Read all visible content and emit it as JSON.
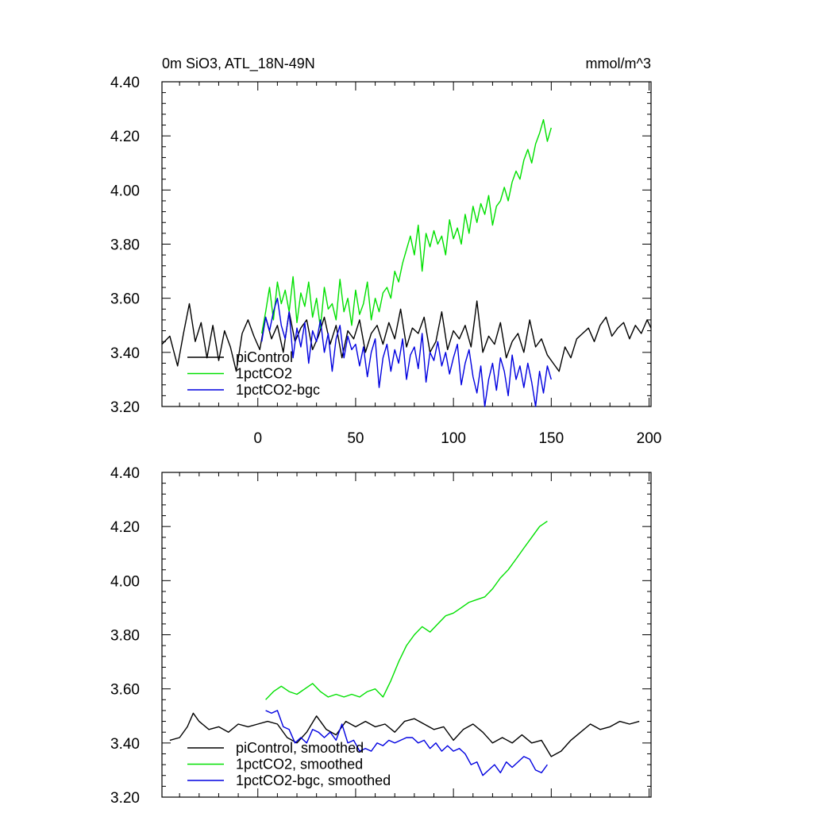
{
  "title_left": "0m SiO3, ATL_18N-49N",
  "title_right": "mmol/m^3",
  "colors": {
    "piControl": "#000000",
    "1pctCO2": "#00e000",
    "1pctCO2-bgc": "#0000e0"
  },
  "chart_data": [
    {
      "type": "line",
      "title": "0m SiO3, ATL_18N-49N",
      "units": "mmol/m^3",
      "xlim": [
        -49,
        201
      ],
      "ylim": [
        3.2,
        4.4
      ],
      "xticks": [
        0,
        50,
        100,
        150,
        200
      ],
      "xtick_labels": [
        "0",
        "50",
        "100",
        "150",
        "200"
      ],
      "yticks": [
        3.2,
        3.4,
        3.6,
        3.8,
        4.0,
        4.2,
        4.4
      ],
      "ytick_labels": [
        "3.20",
        "3.40",
        "3.60",
        "3.80",
        "4.00",
        "4.20",
        "4.40"
      ],
      "legend_position": "bottom-left",
      "series": [
        {
          "name": "piControl",
          "color": "#000000",
          "x": [
            -49,
            -45,
            -41,
            -38,
            -35,
            -32,
            -29,
            -26,
            -23,
            -20,
            -17,
            -14,
            -11,
            -8,
            -5,
            -2,
            1,
            4,
            7,
            10,
            13,
            16,
            19,
            22,
            25,
            28,
            31,
            34,
            37,
            40,
            43,
            46,
            49,
            52,
            55,
            58,
            61,
            64,
            67,
            70,
            73,
            76,
            79,
            82,
            85,
            88,
            91,
            94,
            97,
            100,
            103,
            106,
            109,
            112,
            115,
            118,
            121,
            124,
            127,
            130,
            133,
            136,
            139,
            142,
            145,
            148,
            151,
            154,
            157,
            160,
            163,
            166,
            169,
            172,
            175,
            178,
            181,
            184,
            187,
            190,
            193,
            196,
            199,
            201
          ],
          "values": [
            3.43,
            3.46,
            3.35,
            3.47,
            3.58,
            3.44,
            3.51,
            3.38,
            3.5,
            3.37,
            3.48,
            3.42,
            3.33,
            3.47,
            3.52,
            3.46,
            3.41,
            3.53,
            3.45,
            3.5,
            3.4,
            3.55,
            3.44,
            3.49,
            3.52,
            3.41,
            3.46,
            3.53,
            3.43,
            3.5,
            3.38,
            3.48,
            3.45,
            3.52,
            3.4,
            3.47,
            3.5,
            3.43,
            3.51,
            3.45,
            3.56,
            3.42,
            3.49,
            3.47,
            3.53,
            3.4,
            3.44,
            3.55,
            3.41,
            3.48,
            3.45,
            3.5,
            3.42,
            3.59,
            3.4,
            3.46,
            3.43,
            3.51,
            3.38,
            3.44,
            3.47,
            3.4,
            3.52,
            3.42,
            3.45,
            3.39,
            3.36,
            3.33,
            3.42,
            3.38,
            3.45,
            3.47,
            3.49,
            3.44,
            3.5,
            3.53,
            3.46,
            3.49,
            3.51,
            3.45,
            3.5,
            3.47,
            3.52,
            3.49
          ]
        },
        {
          "name": "1pctCO2",
          "color": "#00e000",
          "x": [
            2,
            4,
            6,
            8,
            10,
            12,
            14,
            16,
            18,
            20,
            22,
            24,
            26,
            28,
            30,
            32,
            34,
            36,
            38,
            40,
            42,
            44,
            46,
            48,
            50,
            52,
            54,
            56,
            58,
            60,
            62,
            64,
            66,
            68,
            70,
            72,
            74,
            76,
            78,
            80,
            82,
            84,
            86,
            88,
            90,
            92,
            94,
            96,
            98,
            100,
            102,
            104,
            106,
            108,
            110,
            112,
            114,
            116,
            118,
            120,
            122,
            124,
            126,
            128,
            130,
            132,
            134,
            136,
            138,
            140,
            142,
            144,
            146,
            148,
            150
          ],
          "values": [
            3.47,
            3.55,
            3.64,
            3.52,
            3.66,
            3.58,
            3.63,
            3.55,
            3.68,
            3.51,
            3.62,
            3.57,
            3.66,
            3.53,
            3.6,
            3.49,
            3.64,
            3.56,
            3.58,
            3.52,
            3.67,
            3.55,
            3.6,
            3.5,
            3.63,
            3.54,
            3.58,
            3.66,
            3.52,
            3.6,
            3.55,
            3.62,
            3.64,
            3.6,
            3.7,
            3.66,
            3.73,
            3.78,
            3.83,
            3.76,
            3.87,
            3.7,
            3.84,
            3.79,
            3.85,
            3.8,
            3.83,
            3.76,
            3.89,
            3.82,
            3.86,
            3.8,
            3.91,
            3.84,
            3.94,
            3.88,
            3.95,
            3.91,
            3.98,
            3.87,
            3.94,
            3.96,
            4.01,
            3.96,
            4.03,
            4.07,
            4.04,
            4.11,
            4.15,
            4.1,
            4.17,
            4.21,
            4.26,
            4.18,
            4.23
          ]
        },
        {
          "name": "1pctCO2-bgc",
          "color": "#0000e0",
          "x": [
            2,
            4,
            6,
            8,
            10,
            12,
            14,
            16,
            18,
            20,
            22,
            24,
            26,
            28,
            30,
            32,
            34,
            36,
            38,
            40,
            42,
            44,
            46,
            48,
            50,
            52,
            54,
            56,
            58,
            60,
            62,
            64,
            66,
            68,
            70,
            72,
            74,
            76,
            78,
            80,
            82,
            84,
            86,
            88,
            90,
            92,
            94,
            96,
            98,
            100,
            102,
            104,
            106,
            108,
            110,
            112,
            114,
            116,
            118,
            120,
            122,
            124,
            126,
            128,
            130,
            132,
            134,
            136,
            138,
            140,
            142,
            144,
            146,
            148,
            150
          ],
          "values": [
            3.44,
            3.53,
            3.48,
            3.55,
            3.6,
            3.5,
            3.45,
            3.55,
            3.38,
            3.49,
            3.42,
            3.51,
            3.36,
            3.48,
            3.44,
            3.52,
            3.4,
            3.47,
            3.33,
            3.45,
            3.5,
            3.38,
            3.46,
            3.41,
            3.43,
            3.35,
            3.42,
            3.31,
            3.4,
            3.45,
            3.27,
            3.38,
            3.43,
            3.33,
            3.41,
            3.36,
            3.45,
            3.3,
            3.39,
            3.42,
            3.34,
            3.47,
            3.29,
            3.4,
            3.37,
            3.44,
            3.35,
            3.4,
            3.32,
            3.38,
            3.43,
            3.28,
            3.36,
            3.41,
            3.31,
            3.25,
            3.35,
            3.2,
            3.3,
            3.36,
            3.26,
            3.38,
            3.33,
            3.24,
            3.39,
            3.3,
            3.35,
            3.27,
            3.36,
            3.29,
            3.2,
            3.33,
            3.25,
            3.35,
            3.3
          ]
        }
      ]
    },
    {
      "type": "line",
      "xlim": [
        -49,
        201
      ],
      "ylim": [
        3.2,
        4.4
      ],
      "xticks": [
        0,
        50,
        100,
        150,
        200
      ],
      "yticks": [
        3.2,
        3.4,
        3.6,
        3.8,
        4.0,
        4.2,
        4.4
      ],
      "ytick_labels": [
        "3.20",
        "3.40",
        "3.60",
        "3.80",
        "4.00",
        "4.20",
        "4.40"
      ],
      "legend_position": "bottom-left",
      "series": [
        {
          "name": "piControl, smoothed",
          "color": "#000000",
          "x": [
            -45,
            -40,
            -36,
            -33,
            -30,
            -25,
            -20,
            -15,
            -10,
            -5,
            0,
            5,
            10,
            15,
            20,
            25,
            30,
            35,
            40,
            45,
            50,
            55,
            60,
            65,
            70,
            75,
            80,
            85,
            90,
            95,
            100,
            105,
            110,
            115,
            120,
            125,
            130,
            135,
            140,
            145,
            150,
            155,
            160,
            165,
            170,
            175,
            180,
            185,
            190,
            195
          ],
          "values": [
            3.41,
            3.42,
            3.46,
            3.51,
            3.48,
            3.45,
            3.46,
            3.44,
            3.47,
            3.46,
            3.47,
            3.48,
            3.47,
            3.42,
            3.4,
            3.44,
            3.5,
            3.45,
            3.43,
            3.48,
            3.46,
            3.48,
            3.46,
            3.47,
            3.44,
            3.48,
            3.49,
            3.47,
            3.45,
            3.46,
            3.41,
            3.45,
            3.47,
            3.44,
            3.4,
            3.42,
            3.4,
            3.43,
            3.4,
            3.41,
            3.35,
            3.37,
            3.41,
            3.44,
            3.47,
            3.45,
            3.46,
            3.48,
            3.47,
            3.48
          ]
        },
        {
          "name": "1pctCO2, smoothed",
          "color": "#00e000",
          "x": [
            4,
            8,
            12,
            16,
            20,
            24,
            28,
            32,
            36,
            40,
            44,
            48,
            52,
            56,
            60,
            64,
            68,
            72,
            76,
            80,
            84,
            88,
            92,
            96,
            100,
            104,
            108,
            112,
            116,
            120,
            124,
            128,
            132,
            136,
            140,
            144,
            148
          ],
          "values": [
            3.56,
            3.59,
            3.61,
            3.59,
            3.58,
            3.6,
            3.62,
            3.59,
            3.57,
            3.58,
            3.57,
            3.58,
            3.57,
            3.59,
            3.6,
            3.57,
            3.63,
            3.7,
            3.76,
            3.8,
            3.83,
            3.81,
            3.84,
            3.87,
            3.88,
            3.9,
            3.92,
            3.93,
            3.94,
            3.97,
            4.01,
            4.04,
            4.08,
            4.12,
            4.16,
            4.2,
            4.22
          ]
        },
        {
          "name": "1pctCO2-bgc, smoothed",
          "color": "#0000e0",
          "x": [
            4,
            7,
            10,
            13,
            16,
            19,
            22,
            25,
            28,
            31,
            34,
            37,
            40,
            43,
            46,
            49,
            52,
            55,
            58,
            61,
            64,
            67,
            70,
            73,
            76,
            79,
            82,
            85,
            88,
            91,
            94,
            97,
            100,
            103,
            106,
            109,
            112,
            115,
            118,
            121,
            124,
            127,
            130,
            133,
            136,
            139,
            142,
            145,
            148
          ],
          "values": [
            3.52,
            3.51,
            3.52,
            3.46,
            3.45,
            3.4,
            3.42,
            3.4,
            3.45,
            3.44,
            3.42,
            3.44,
            3.41,
            3.47,
            3.4,
            3.41,
            3.37,
            3.38,
            3.37,
            3.4,
            3.39,
            3.41,
            3.4,
            3.41,
            3.42,
            3.42,
            3.4,
            3.41,
            3.38,
            3.4,
            3.37,
            3.39,
            3.37,
            3.38,
            3.36,
            3.32,
            3.33,
            3.28,
            3.3,
            3.32,
            3.29,
            3.33,
            3.31,
            3.33,
            3.35,
            3.34,
            3.3,
            3.29,
            3.32
          ]
        }
      ]
    }
  ]
}
